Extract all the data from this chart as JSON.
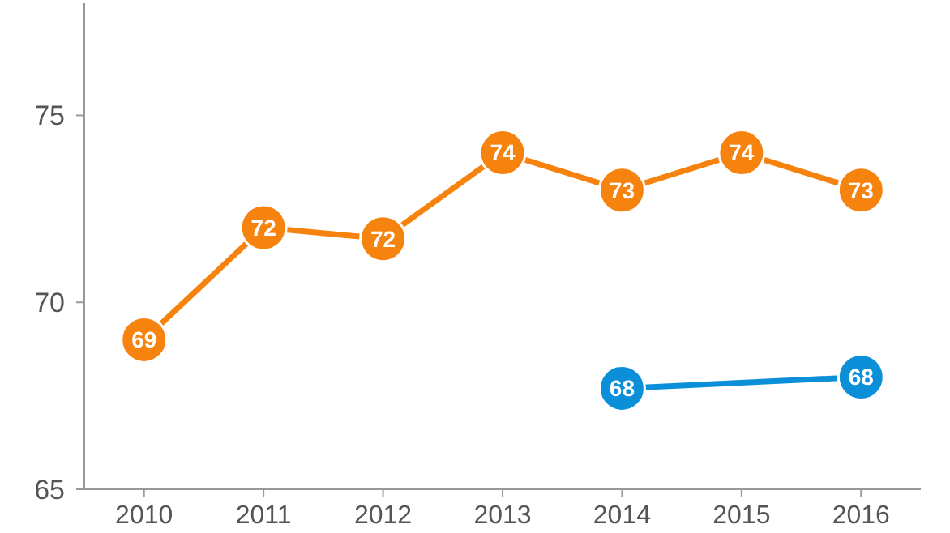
{
  "chart_data": {
    "type": "line",
    "categories": [
      "2010",
      "2011",
      "2012",
      "2013",
      "2014",
      "2015",
      "2016"
    ],
    "series": [
      {
        "color": "#f7830f",
        "values": [
          69,
          72,
          71.7,
          74,
          73,
          74,
          73
        ],
        "value_labels": [
          "69",
          "72",
          "72",
          "74",
          "73",
          "74",
          "73"
        ]
      },
      {
        "color": "#0b8fd8",
        "values": [
          null,
          null,
          null,
          null,
          67.7,
          null,
          68
        ],
        "value_labels": [
          null,
          null,
          null,
          null,
          "68",
          null,
          "68"
        ]
      }
    ],
    "ylim": [
      65,
      78
    ],
    "yticks": [
      65,
      70,
      75
    ],
    "grid": false,
    "marker": "circle",
    "line_style": "solid"
  }
}
